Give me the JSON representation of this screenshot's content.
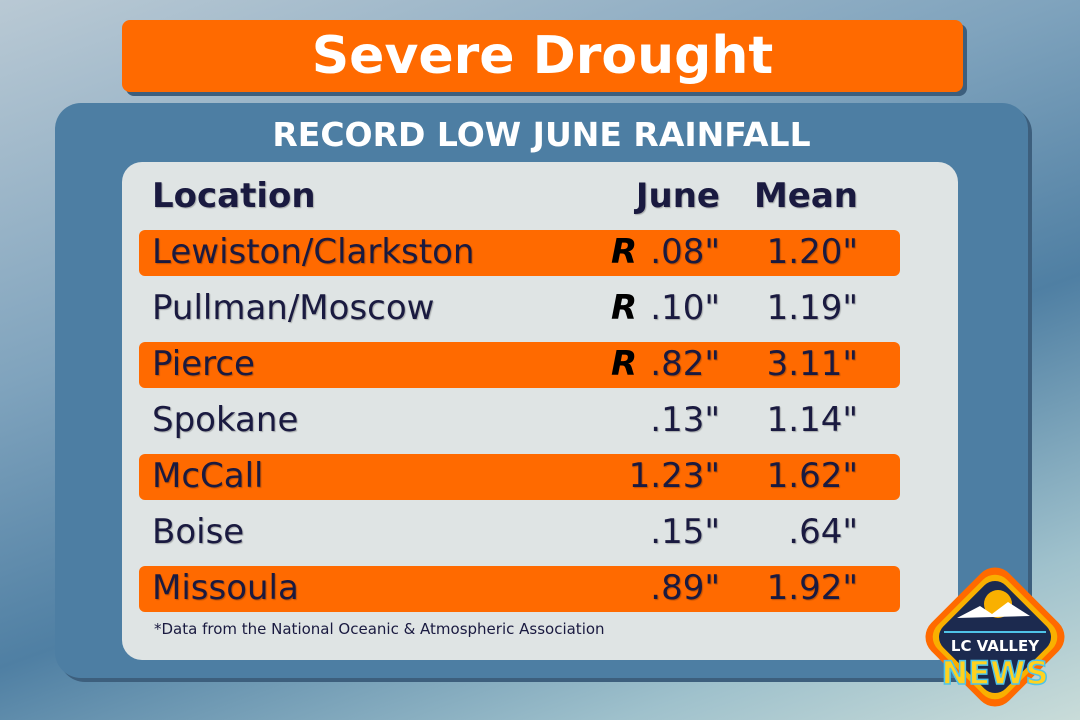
{
  "title": "Severe Drought",
  "subtitle": "RECORD LOW JUNE RAINFALL",
  "table": {
    "headers": {
      "location": "Location",
      "june": "June",
      "mean": "Mean"
    },
    "rows": [
      {
        "location": "Lewiston/Clarkston",
        "record": "R",
        "june": ".08\"",
        "mean": "1.20\"",
        "highlight": true
      },
      {
        "location": "Pullman/Moscow",
        "record": "R",
        "june": ".10\"",
        "mean": "1.19\"",
        "highlight": false
      },
      {
        "location": "Pierce",
        "record": "R",
        "june": ".82\"",
        "mean": "3.11\"",
        "highlight": true
      },
      {
        "location": "Spokane",
        "record": "",
        "june": ".13\"",
        "mean": "1.14\"",
        "highlight": false
      },
      {
        "location": "McCall",
        "record": "",
        "june": "1.23\"",
        "mean": "1.62\"",
        "highlight": true
      },
      {
        "location": "Boise",
        "record": "",
        "june": ".15\"",
        "mean": ".64\"",
        "highlight": false
      },
      {
        "location": "Missoula",
        "record": "",
        "june": ".89\"",
        "mean": "1.92\"",
        "highlight": true
      }
    ]
  },
  "footnote": "*Data from the National Oceanic & Atmospheric Association",
  "logo": {
    "line1": "LC VALLEY",
    "line2": "NEWS"
  },
  "colors": {
    "accent": "#ff6a00",
    "panel": "#4d7ea3",
    "text": "#1a1a40"
  }
}
